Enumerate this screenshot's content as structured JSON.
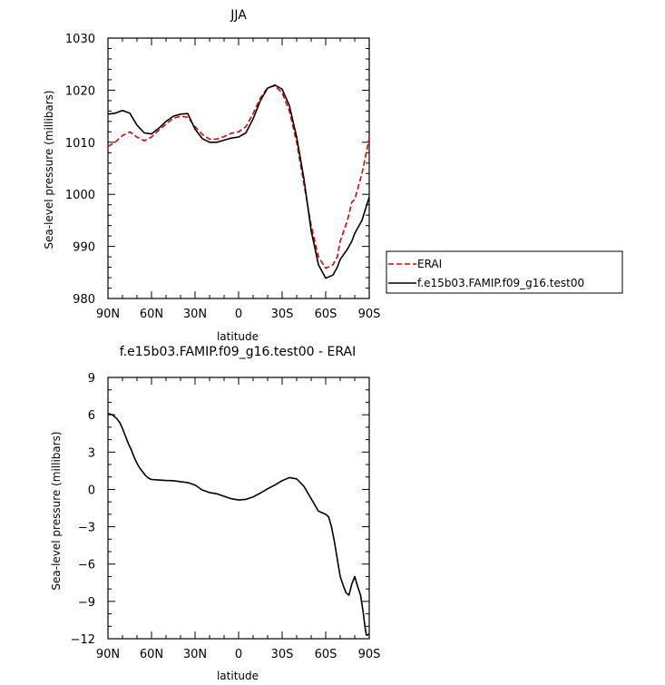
{
  "chart_data": [
    {
      "type": "line",
      "title": "JJA",
      "xlabel": "latitude",
      "ylabel": "Sea-level pressure (millibars)",
      "xlim": [
        90,
        -90
      ],
      "ylim": [
        980,
        1030
      ],
      "xticks": [
        {
          "value": 90,
          "label": "90N"
        },
        {
          "value": 60,
          "label": "60N"
        },
        {
          "value": 30,
          "label": "30N"
        },
        {
          "value": 0,
          "label": "0"
        },
        {
          "value": -30,
          "label": "30S"
        },
        {
          "value": -60,
          "label": "60S"
        },
        {
          "value": -90,
          "label": "90S"
        }
      ],
      "yticks": [
        {
          "value": 980,
          "label": "980"
        },
        {
          "value": 990,
          "label": "990"
        },
        {
          "value": 1000,
          "label": "1000"
        },
        {
          "value": 1010,
          "label": "1010"
        },
        {
          "value": 1020,
          "label": "1020"
        },
        {
          "value": 1030,
          "label": "1030"
        }
      ],
      "series": [
        {
          "name": "ERAI",
          "color": "#e00000",
          "dash": true,
          "x": [
            90,
            85,
            80,
            75,
            70,
            65,
            60,
            55,
            50,
            45,
            40,
            35,
            30,
            25,
            20,
            15,
            10,
            5,
            0,
            -5,
            -10,
            -15,
            -20,
            -25,
            -30,
            -35,
            -40,
            -45,
            -50,
            -55,
            -60,
            -65,
            -68,
            -70,
            -75,
            -78,
            -80,
            -85,
            -90
          ],
          "y": [
            1009.2,
            1010,
            1011.3,
            1012,
            1011,
            1010.3,
            1011,
            1012.3,
            1013.5,
            1014.6,
            1015,
            1014.8,
            1013,
            1011.5,
            1010.6,
            1010.6,
            1011.1,
            1011.7,
            1012,
            1013,
            1015.5,
            1018.5,
            1020.5,
            1020.8,
            1019.5,
            1016,
            1010,
            1002,
            994,
            988,
            985.8,
            986.5,
            988,
            991,
            995,
            998.5,
            999,
            1004,
            1010.8
          ]
        },
        {
          "name": "f.e15b03.FAMIP.f09_g16.test00",
          "color": "#000000",
          "dash": false,
          "x": [
            90,
            85,
            80,
            75,
            70,
            65,
            60,
            55,
            50,
            45,
            40,
            35,
            30,
            25,
            20,
            15,
            10,
            5,
            0,
            -5,
            -10,
            -15,
            -20,
            -25,
            -30,
            -35,
            -40,
            -45,
            -50,
            -55,
            -60,
            -65,
            -68,
            -70,
            -75,
            -78,
            -80,
            -85,
            -90
          ],
          "y": [
            1015.4,
            1015.6,
            1016.1,
            1015.6,
            1013.3,
            1011.8,
            1011.6,
            1012.7,
            1014,
            1015,
            1015.4,
            1015.5,
            1012.5,
            1010.7,
            1010,
            1010,
            1010.4,
            1010.8,
            1011,
            1011.8,
            1014.5,
            1018,
            1020.4,
            1021,
            1020.2,
            1017,
            1011,
            1003,
            993,
            986.5,
            983.9,
            984.5,
            986,
            987.5,
            989.5,
            991,
            992.5,
            995,
            999.5
          ]
        }
      ],
      "legend": {
        "placement": "right of plot, lower"
      }
    },
    {
      "type": "line",
      "title": "f.e15b03.FAMIP.f09_g16.test00 - ERAI",
      "xlabel": "latitude",
      "ylabel": "Sea-level pressure (millibars)",
      "xlim": [
        90,
        -90
      ],
      "ylim": [
        -12,
        9
      ],
      "xticks": [
        {
          "value": 90,
          "label": "90N"
        },
        {
          "value": 60,
          "label": "60N"
        },
        {
          "value": 30,
          "label": "30N"
        },
        {
          "value": 0,
          "label": "0"
        },
        {
          "value": -30,
          "label": "30S"
        },
        {
          "value": -60,
          "label": "60S"
        },
        {
          "value": -90,
          "label": "90S"
        }
      ],
      "yticks": [
        {
          "value": -12,
          "label": "−12"
        },
        {
          "value": -9,
          "label": "−9"
        },
        {
          "value": -6,
          "label": "−6"
        },
        {
          "value": -3,
          "label": "−3"
        },
        {
          "value": 0,
          "label": "0"
        },
        {
          "value": 3,
          "label": "3"
        },
        {
          "value": 6,
          "label": "6"
        },
        {
          "value": 9,
          "label": "9"
        }
      ],
      "series": [
        {
          "color": "#000000",
          "dash": false,
          "x": [
            90,
            87,
            84,
            82,
            80,
            78,
            76,
            74,
            72,
            70,
            68,
            66,
            64,
            62,
            60,
            55,
            50,
            45,
            40,
            35,
            30,
            25,
            20,
            15,
            10,
            5,
            0,
            -5,
            -10,
            -15,
            -20,
            -25,
            -30,
            -35,
            -40,
            -45,
            -50,
            -55,
            -60,
            -62,
            -64,
            -66,
            -68,
            -70,
            -72,
            -74,
            -76,
            -78,
            -80,
            -82,
            -84,
            -86,
            -87,
            -88,
            -89,
            -90
          ],
          "y": [
            6.1,
            6.0,
            5.7,
            5.4,
            4.9,
            4.3,
            3.7,
            3.2,
            2.6,
            2.1,
            1.7,
            1.4,
            1.1,
            0.9,
            0.8,
            0.75,
            0.72,
            0.7,
            0.62,
            0.55,
            0.35,
            -0.05,
            -0.25,
            -0.35,
            -0.55,
            -0.75,
            -0.85,
            -0.8,
            -0.6,
            -0.3,
            0.05,
            0.35,
            0.7,
            0.95,
            0.85,
            0.25,
            -0.75,
            -1.75,
            -2.0,
            -2.2,
            -3.0,
            -4.2,
            -5.6,
            -7.0,
            -7.7,
            -8.3,
            -8.5,
            -7.6,
            -7.0,
            -7.8,
            -8.5,
            -10.0,
            -11.0,
            -11.7,
            -11.7,
            -11.6
          ]
        }
      ]
    }
  ]
}
